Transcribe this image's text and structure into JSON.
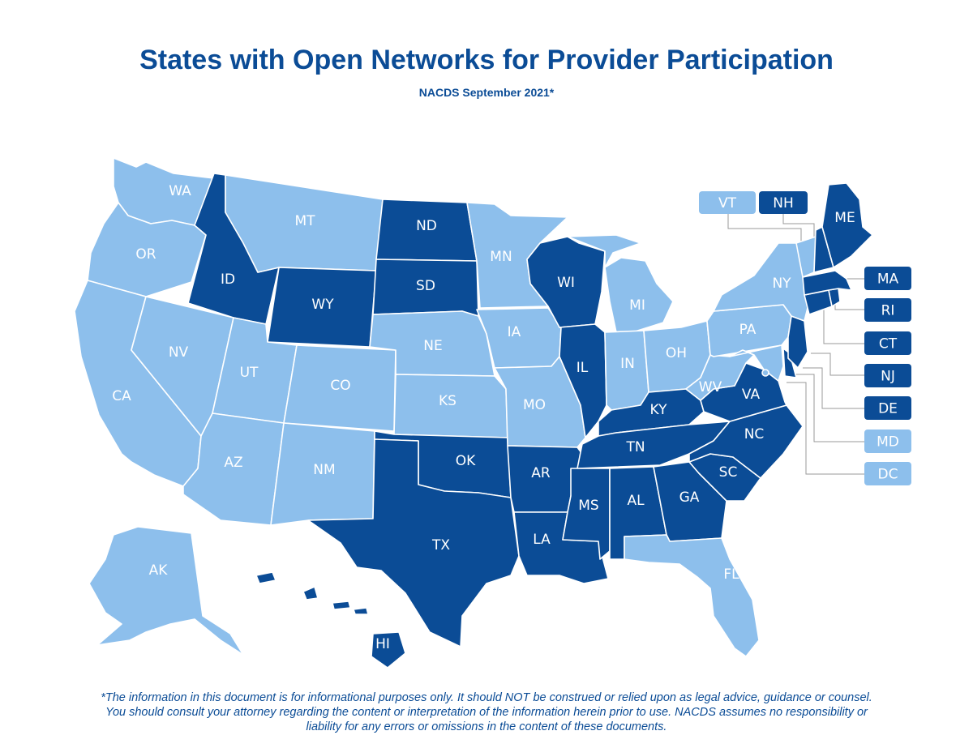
{
  "title": "States with Open Networks for Provider Participation",
  "subtitle": "NACDS September 2021*",
  "colors": {
    "open": "#0b4c96",
    "not_open": "#8dbfec"
  },
  "states": {
    "WA": {
      "label": "WA",
      "open": false
    },
    "OR": {
      "label": "OR",
      "open": false
    },
    "CA": {
      "label": "CA",
      "open": false
    },
    "ID": {
      "label": "ID",
      "open": true
    },
    "NV": {
      "label": "NV",
      "open": false
    },
    "MT": {
      "label": "MT",
      "open": false
    },
    "WY": {
      "label": "WY",
      "open": true
    },
    "UT": {
      "label": "UT",
      "open": false
    },
    "AZ": {
      "label": "AZ",
      "open": false
    },
    "CO": {
      "label": "CO",
      "open": false
    },
    "NM": {
      "label": "NM",
      "open": false
    },
    "ND": {
      "label": "ND",
      "open": true
    },
    "SD": {
      "label": "SD",
      "open": true
    },
    "NE": {
      "label": "NE",
      "open": false
    },
    "KS": {
      "label": "KS",
      "open": false
    },
    "OK": {
      "label": "OK",
      "open": true
    },
    "TX": {
      "label": "TX",
      "open": true
    },
    "MN": {
      "label": "MN",
      "open": false
    },
    "IA": {
      "label": "IA",
      "open": false
    },
    "MO": {
      "label": "MO",
      "open": false
    },
    "AR": {
      "label": "AR",
      "open": true
    },
    "LA": {
      "label": "LA",
      "open": true
    },
    "WI": {
      "label": "WI",
      "open": true
    },
    "IL": {
      "label": "IL",
      "open": true
    },
    "MI": {
      "label": "MI",
      "open": false
    },
    "IN": {
      "label": "IN",
      "open": false
    },
    "OH": {
      "label": "OH",
      "open": false
    },
    "KY": {
      "label": "KY",
      "open": true
    },
    "TN": {
      "label": "TN",
      "open": true
    },
    "MS": {
      "label": "MS",
      "open": true
    },
    "AL": {
      "label": "AL",
      "open": true
    },
    "GA": {
      "label": "GA",
      "open": true
    },
    "FL": {
      "label": "FL",
      "open": false
    },
    "SC": {
      "label": "SC",
      "open": true
    },
    "NC": {
      "label": "NC",
      "open": true
    },
    "VA": {
      "label": "VA",
      "open": true
    },
    "WV": {
      "label": "WV",
      "open": false
    },
    "PA": {
      "label": "PA",
      "open": false
    },
    "NY": {
      "label": "NY",
      "open": false
    },
    "VT": {
      "label": "VT",
      "open": false
    },
    "NH": {
      "label": "NH",
      "open": true
    },
    "ME": {
      "label": "ME",
      "open": true
    },
    "MA": {
      "label": "MA",
      "open": true
    },
    "RI": {
      "label": "RI",
      "open": true
    },
    "CT": {
      "label": "CT",
      "open": true
    },
    "NJ": {
      "label": "NJ",
      "open": true
    },
    "DE": {
      "label": "DE",
      "open": true
    },
    "MD": {
      "label": "MD",
      "open": false
    },
    "DC": {
      "label": "DC",
      "open": false
    },
    "AK": {
      "label": "AK",
      "open": false
    },
    "HI": {
      "label": "HI",
      "open": true
    }
  },
  "disclaimer": {
    "line1": "*The information in this document is for informational purposes only. It should NOT be construed or relied upon as legal advice, guidance or counsel.",
    "line2": "You should consult your attorney regarding the content or interpretation of the information herein prior to use. NACDS assumes no responsibility or",
    "line3": "liability for any errors or omissions in the content of these documents."
  }
}
